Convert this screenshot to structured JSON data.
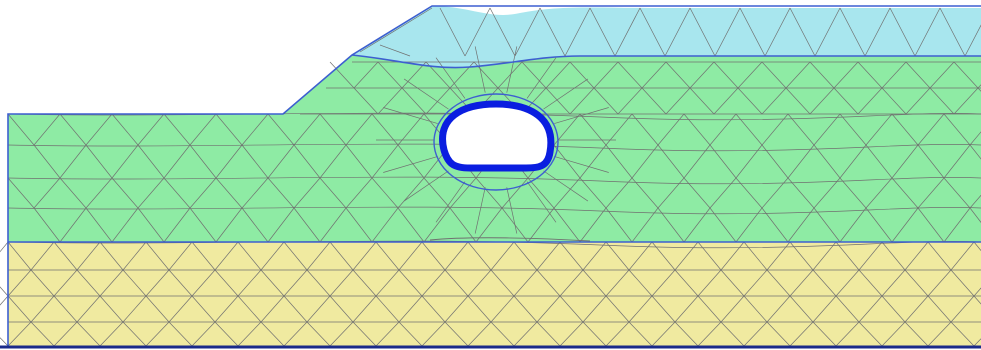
{
  "view": {
    "title": ""
  },
  "colors": {
    "background": "#ffffff",
    "layer_top": "#a8e6ee",
    "layer_middle": "#8eeba4",
    "layer_bottom": "#f0eaa0",
    "boundary": "#3d5fd0",
    "tunnel_lining": "#0a1ee0",
    "mesh_line": "#707070",
    "tunnel_void": "#ffffff"
  },
  "layers": [
    {
      "id": "layer-top",
      "name": ""
    },
    {
      "id": "layer-middle",
      "name": ""
    },
    {
      "id": "layer-bottom",
      "name": ""
    }
  ],
  "tunnel": {
    "name": ""
  }
}
